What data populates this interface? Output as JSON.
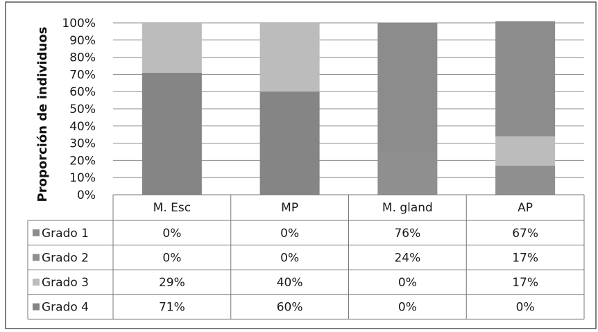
{
  "chart_data": {
    "type": "bar",
    "stacked": true,
    "ylabel": "Proporción de individuos",
    "yticks": [
      "0%",
      "10%",
      "20%",
      "30%",
      "40%",
      "50%",
      "60%",
      "70%",
      "80%",
      "90%",
      "100%"
    ],
    "ylim": [
      0,
      100
    ],
    "categories": [
      "M. Esc",
      "MP",
      "M. gland",
      "AP"
    ],
    "series": [
      {
        "name": "Grado 1",
        "values": [
          0,
          0,
          76,
          67
        ],
        "labels": [
          "0%",
          "0%",
          "76%",
          "67%"
        ],
        "color": "#8c8c8c"
      },
      {
        "name": "Grado 2",
        "values": [
          0,
          0,
          24,
          17
        ],
        "labels": [
          "0%",
          "0%",
          "24%",
          "17%"
        ],
        "color": "#8f8f8f"
      },
      {
        "name": "Grado 3",
        "values": [
          29,
          40,
          0,
          17
        ],
        "labels": [
          "29%",
          "40%",
          "0%",
          "17%"
        ],
        "color": "#bcbcbc"
      },
      {
        "name": "Grado 4",
        "values": [
          71,
          60,
          0,
          0
        ],
        "labels": [
          "71%",
          "60%",
          "0%",
          "0%"
        ],
        "color": "#858585"
      }
    ],
    "stack_order": [
      3,
      1,
      2,
      0
    ],
    "grid": true,
    "legend": "data-table"
  }
}
